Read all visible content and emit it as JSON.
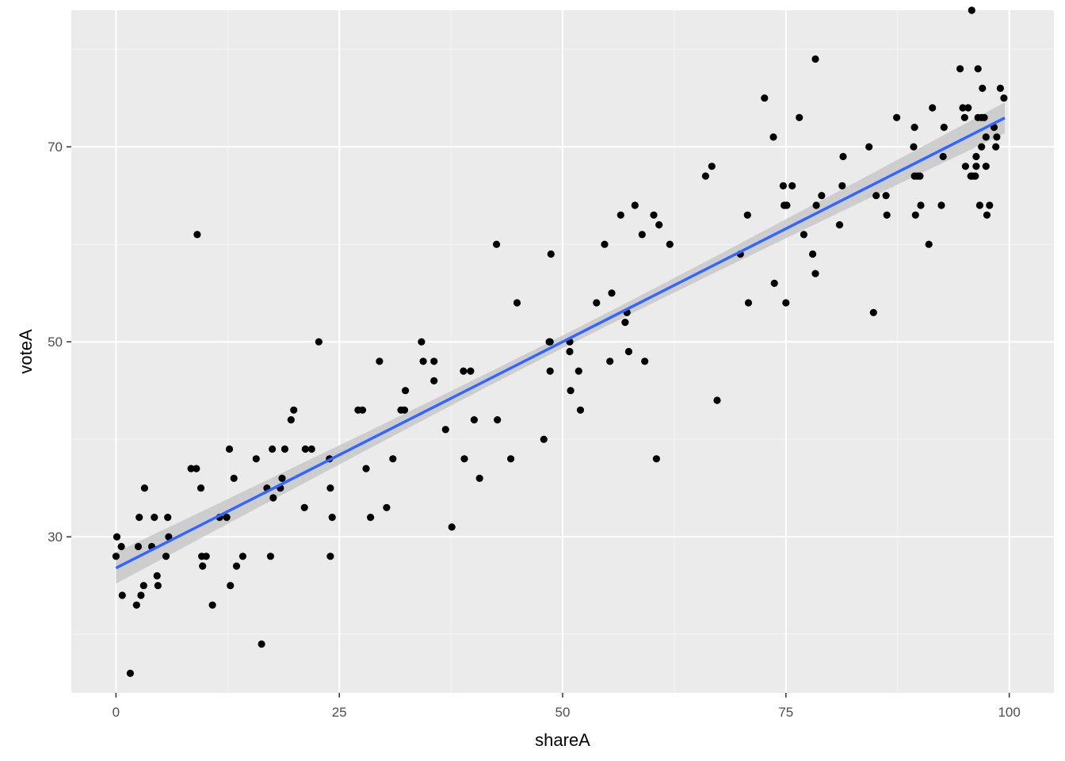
{
  "chart_data": {
    "type": "scatter",
    "title": "",
    "xlabel": "shareA",
    "ylabel": "voteA",
    "xlim": [
      -5,
      105
    ],
    "ylim": [
      14,
      84
    ],
    "x_ticks": [
      0,
      25,
      50,
      75,
      100
    ],
    "y_ticks": [
      30,
      50,
      70
    ],
    "x_tick_labels": [
      "0",
      "25",
      "50",
      "75",
      "100"
    ],
    "y_tick_labels": [
      "30",
      "50",
      "70"
    ],
    "grid": true,
    "legend": "none",
    "colors": {
      "panel_background": "#ebebeb",
      "grid_major": "#ffffff",
      "grid_minor": "#f5f5f5",
      "points": "#000000",
      "fit_line": "#3366ff",
      "confidence_band": "#c8c8c8"
    },
    "trend": {
      "method": "lm",
      "intercept": 26.8,
      "slope": 0.464,
      "x_range": [
        0,
        99.5
      ],
      "band_halfwidth_ends": 1.6,
      "band_halfwidth_center": 0.65,
      "band_center_x": 50
    },
    "points": [
      [
        0.0,
        28
      ],
      [
        0.1,
        30
      ],
      [
        0.6,
        29
      ],
      [
        0.7,
        24
      ],
      [
        1.6,
        16
      ],
      [
        2.3,
        23
      ],
      [
        2.5,
        29
      ],
      [
        2.6,
        32
      ],
      [
        2.8,
        24
      ],
      [
        3.1,
        25
      ],
      [
        3.2,
        35
      ],
      [
        4.0,
        29
      ],
      [
        4.3,
        32
      ],
      [
        4.6,
        26
      ],
      [
        4.7,
        25
      ],
      [
        5.6,
        28
      ],
      [
        5.8,
        32
      ],
      [
        5.9,
        30
      ],
      [
        8.4,
        37
      ],
      [
        9.0,
        37
      ],
      [
        9.1,
        61
      ],
      [
        9.5,
        35
      ],
      [
        9.6,
        28
      ],
      [
        9.7,
        27
      ],
      [
        10.1,
        28
      ],
      [
        10.8,
        23
      ],
      [
        11.6,
        32
      ],
      [
        12.4,
        32
      ],
      [
        12.7,
        39
      ],
      [
        12.8,
        25
      ],
      [
        13.2,
        36
      ],
      [
        13.5,
        27
      ],
      [
        14.2,
        28
      ],
      [
        15.7,
        38
      ],
      [
        16.3,
        19
      ],
      [
        16.9,
        35
      ],
      [
        17.3,
        28
      ],
      [
        17.5,
        39
      ],
      [
        17.6,
        34
      ],
      [
        18.4,
        35
      ],
      [
        18.6,
        36
      ],
      [
        18.9,
        39
      ],
      [
        19.6,
        42
      ],
      [
        19.9,
        43
      ],
      [
        21.1,
        33
      ],
      [
        21.2,
        39
      ],
      [
        21.9,
        39
      ],
      [
        22.7,
        50
      ],
      [
        23.9,
        38
      ],
      [
        24.0,
        35
      ],
      [
        24.0,
        28
      ],
      [
        24.2,
        32
      ],
      [
        27.1,
        43
      ],
      [
        27.6,
        43
      ],
      [
        28.0,
        37
      ],
      [
        28.5,
        32
      ],
      [
        29.5,
        48
      ],
      [
        30.3,
        33
      ],
      [
        31.0,
        38
      ],
      [
        31.9,
        43
      ],
      [
        32.3,
        43
      ],
      [
        32.4,
        45
      ],
      [
        34.2,
        50
      ],
      [
        34.4,
        48
      ],
      [
        35.6,
        48
      ],
      [
        35.6,
        46
      ],
      [
        36.9,
        41
      ],
      [
        37.6,
        31
      ],
      [
        38.9,
        47
      ],
      [
        39.0,
        38
      ],
      [
        39.7,
        47
      ],
      [
        40.1,
        42
      ],
      [
        40.7,
        36
      ],
      [
        42.6,
        60
      ],
      [
        42.7,
        42
      ],
      [
        44.2,
        38
      ],
      [
        44.9,
        54
      ],
      [
        47.9,
        40
      ],
      [
        48.5,
        50
      ],
      [
        48.6,
        50
      ],
      [
        48.6,
        47
      ],
      [
        48.7,
        59
      ],
      [
        50.8,
        50
      ],
      [
        50.8,
        49
      ],
      [
        50.9,
        45
      ],
      [
        51.8,
        47
      ],
      [
        52.0,
        43
      ],
      [
        53.8,
        54
      ],
      [
        54.7,
        60
      ],
      [
        55.3,
        48
      ],
      [
        55.5,
        55
      ],
      [
        56.5,
        63
      ],
      [
        57.0,
        52
      ],
      [
        57.2,
        53
      ],
      [
        57.4,
        49
      ],
      [
        58.1,
        64
      ],
      [
        58.9,
        61
      ],
      [
        59.2,
        48
      ],
      [
        60.2,
        63
      ],
      [
        60.5,
        38
      ],
      [
        60.8,
        62
      ],
      [
        62.0,
        60
      ],
      [
        66.0,
        67
      ],
      [
        66.7,
        68
      ],
      [
        67.3,
        44
      ],
      [
        69.9,
        59
      ],
      [
        70.7,
        63
      ],
      [
        70.8,
        54
      ],
      [
        72.6,
        75
      ],
      [
        73.6,
        71
      ],
      [
        73.7,
        56
      ],
      [
        74.7,
        66
      ],
      [
        74.8,
        64
      ],
      [
        75.0,
        54
      ],
      [
        75.1,
        64
      ],
      [
        75.7,
        66
      ],
      [
        76.5,
        73
      ],
      [
        77.0,
        61
      ],
      [
        78.0,
        59
      ],
      [
        78.3,
        79
      ],
      [
        78.3,
        57
      ],
      [
        78.4,
        64
      ],
      [
        79.0,
        65
      ],
      [
        81.0,
        62
      ],
      [
        81.3,
        66
      ],
      [
        81.4,
        69
      ],
      [
        84.3,
        70
      ],
      [
        84.8,
        53
      ],
      [
        85.1,
        65
      ],
      [
        86.2,
        65
      ],
      [
        86.3,
        63
      ],
      [
        87.4,
        73
      ],
      [
        89.3,
        70
      ],
      [
        89.4,
        72
      ],
      [
        89.4,
        67
      ],
      [
        89.5,
        63
      ],
      [
        89.7,
        67
      ],
      [
        90.0,
        67
      ],
      [
        90.1,
        64
      ],
      [
        91.0,
        60
      ],
      [
        91.4,
        74
      ],
      [
        92.4,
        64
      ],
      [
        92.6,
        69
      ],
      [
        92.7,
        72
      ],
      [
        94.5,
        78
      ],
      [
        94.8,
        74
      ],
      [
        95.0,
        73
      ],
      [
        95.1,
        68
      ],
      [
        95.4,
        74
      ],
      [
        95.7,
        67
      ],
      [
        95.8,
        84
      ],
      [
        95.9,
        67
      ],
      [
        96.2,
        67
      ],
      [
        96.3,
        68
      ],
      [
        96.3,
        69
      ],
      [
        96.5,
        78
      ],
      [
        96.5,
        73
      ],
      [
        96.7,
        64
      ],
      [
        96.9,
        73
      ],
      [
        96.9,
        70
      ],
      [
        97.0,
        76
      ],
      [
        97.2,
        73
      ],
      [
        97.4,
        68
      ],
      [
        97.4,
        71
      ],
      [
        97.5,
        63
      ],
      [
        97.8,
        64
      ],
      [
        98.3,
        72
      ],
      [
        98.5,
        70
      ],
      [
        98.6,
        71
      ],
      [
        99.0,
        76
      ],
      [
        99.4,
        75
      ]
    ]
  }
}
